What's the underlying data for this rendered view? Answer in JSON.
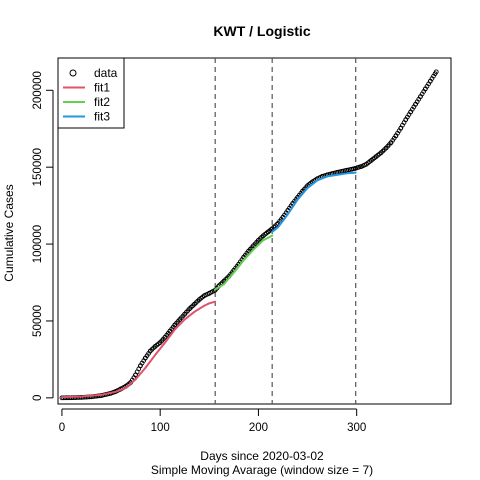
{
  "chart_data": {
    "type": "scatter",
    "title": "KWT / Logistic",
    "xlabel": "Days since 2020-03-02",
    "xlabel2": "Simple Moving Avarage (window size = 7)",
    "ylabel": "Cumulative Cases",
    "xlim": [
      -4,
      396
    ],
    "ylim": [
      -4000,
      221000
    ],
    "x_ticks": [
      {
        "value": 0,
        "label": "0"
      },
      {
        "value": 100,
        "label": "100"
      },
      {
        "value": 200,
        "label": "200"
      },
      {
        "value": 300,
        "label": "300"
      }
    ],
    "y_ticks": [
      {
        "value": 0,
        "label": "0"
      },
      {
        "value": 50000,
        "label": "50000"
      },
      {
        "value": 100000,
        "label": "100000"
      },
      {
        "value": 150000,
        "label": "150000"
      },
      {
        "value": 200000,
        "label": "200000"
      }
    ],
    "vlines": [
      156,
      214,
      299
    ],
    "legend_position": "top-left",
    "grid": false,
    "data_points": {
      "name": "data",
      "color": "#000000",
      "x": [
        0,
        10,
        20,
        30,
        40,
        50,
        55,
        60,
        65,
        70,
        75,
        80,
        85,
        90,
        95,
        100,
        105,
        110,
        115,
        120,
        125,
        130,
        135,
        140,
        145,
        150,
        156,
        160,
        165,
        170,
        175,
        180,
        185,
        190,
        195,
        200,
        205,
        210,
        214,
        220,
        225,
        230,
        235,
        240,
        245,
        250,
        255,
        260,
        265,
        270,
        275,
        280,
        285,
        290,
        295,
        299,
        305,
        310,
        315,
        320,
        325,
        330,
        335,
        340,
        345,
        350,
        355,
        360,
        365,
        370,
        375,
        381
      ],
      "y": [
        0,
        100,
        300,
        700,
        1500,
        3000,
        4200,
        5800,
        7500,
        10000,
        15000,
        21000,
        26000,
        30500,
        33500,
        36000,
        39500,
        43500,
        47500,
        51000,
        54500,
        58000,
        61000,
        64000,
        66500,
        68000,
        70000,
        73000,
        76000,
        79000,
        83000,
        87000,
        91500,
        95500,
        99000,
        102500,
        105500,
        108000,
        110000,
        113500,
        117500,
        122000,
        126500,
        130500,
        134500,
        138000,
        140500,
        142500,
        144000,
        145000,
        145800,
        146600,
        147300,
        148000,
        148700,
        149300,
        150500,
        152000,
        154500,
        157000,
        159500,
        162500,
        166000,
        170500,
        175500,
        181000,
        186000,
        191000,
        196000,
        201000,
        206000,
        212000
      ]
    },
    "series": [
      {
        "name": "fit1",
        "color": "#DF536B",
        "x": [
          0,
          20,
          40,
          55,
          65,
          75,
          85,
          95,
          105,
          115,
          125,
          135,
          145,
          150,
          156
        ],
        "y": [
          500,
          900,
          2000,
          4000,
          6500,
          12000,
          19500,
          28000,
          36000,
          44500,
          51000,
          56000,
          60000,
          61500,
          62500
        ]
      },
      {
        "name": "fit2",
        "color": "#61D04F",
        "x": [
          156,
          165,
          175,
          185,
          195,
          205,
          214
        ],
        "y": [
          70500,
          74000,
          81500,
          89500,
          96500,
          102500,
          105500
        ]
      },
      {
        "name": "fit3",
        "color": "#2297E6",
        "x": [
          214,
          220,
          230,
          240,
          250,
          260,
          270,
          280,
          290,
          299
        ],
        "y": [
          108000,
          111000,
          119500,
          129000,
          136500,
          141500,
          144000,
          145000,
          146000,
          146500
        ]
      }
    ]
  }
}
